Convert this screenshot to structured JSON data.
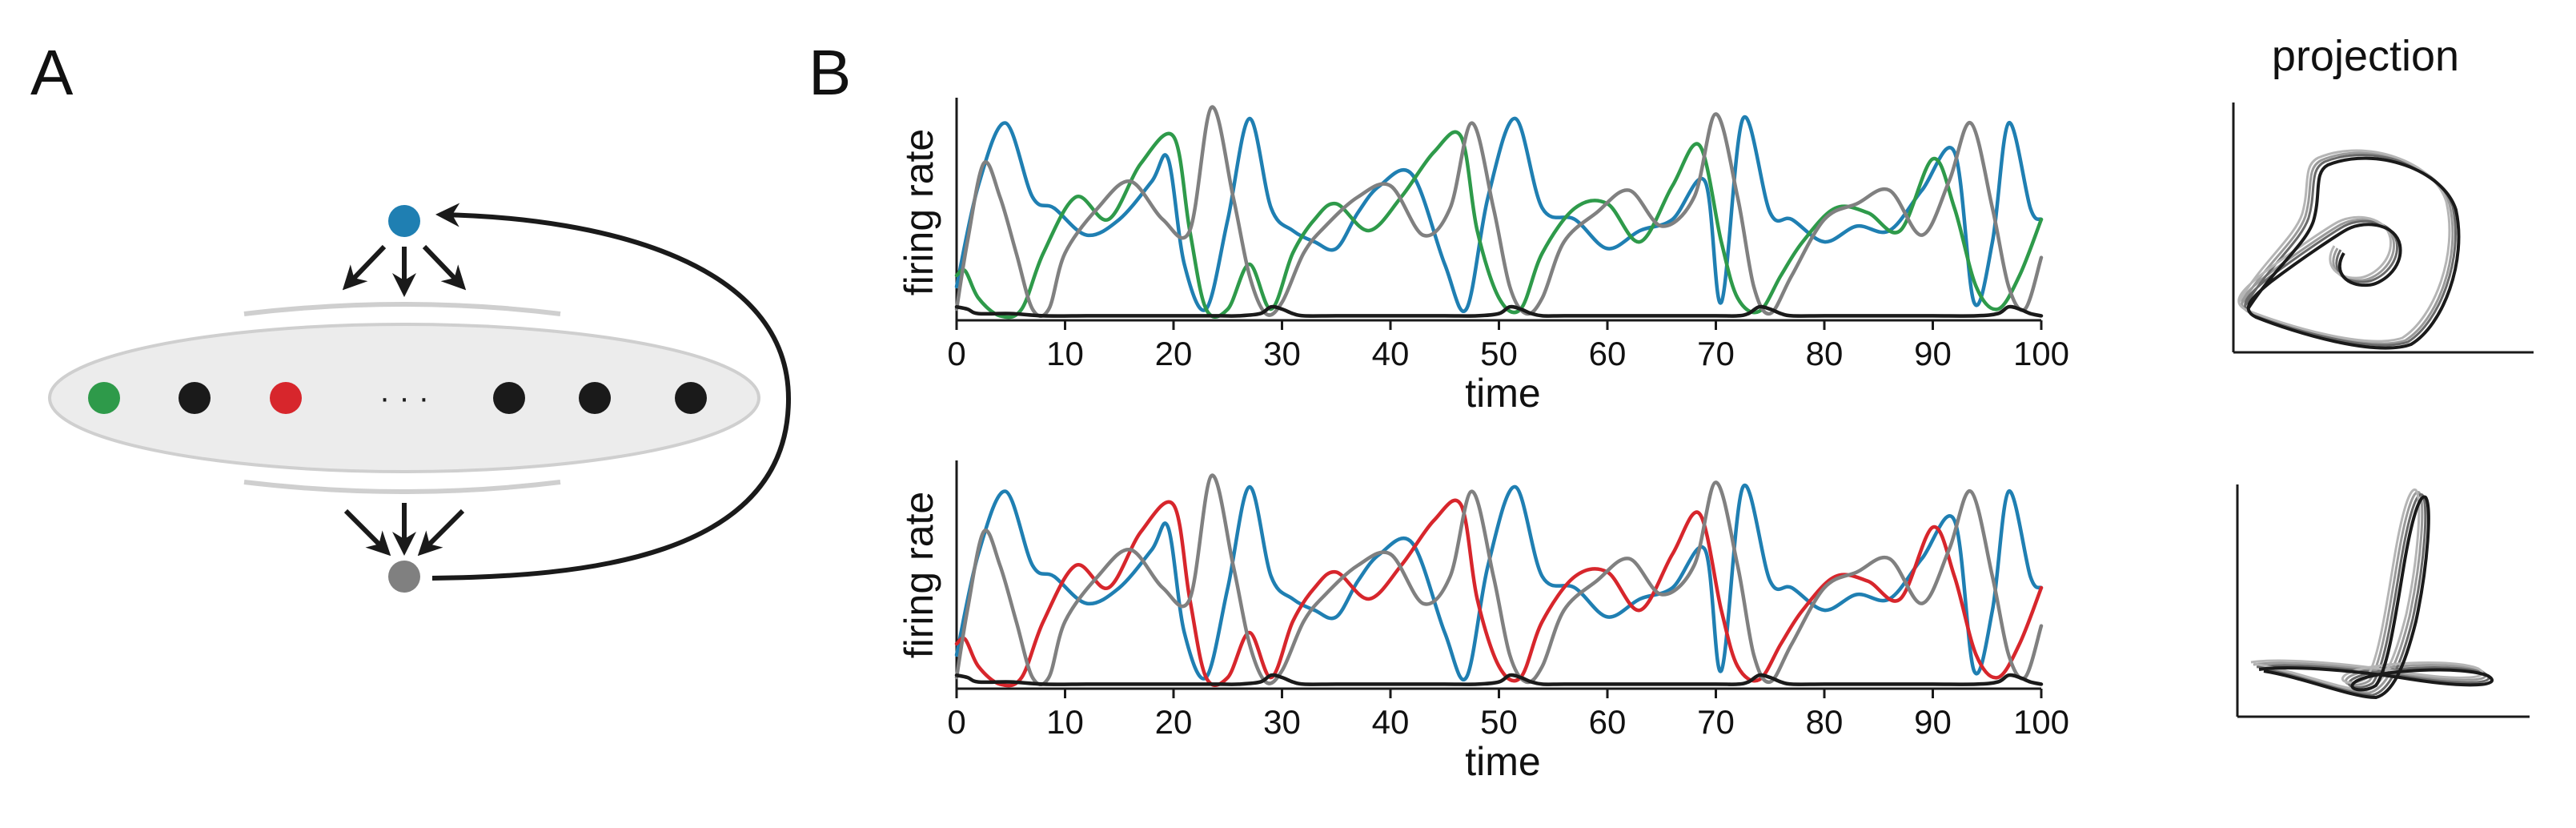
{
  "panel_a": {
    "label": "A",
    "ellipsis": "· · ·"
  },
  "panel_b": {
    "label": "B"
  },
  "projection": {
    "title": "projection"
  },
  "colors": {
    "blue": "#1f7fb2",
    "green": "#2e9a4a",
    "red": "#d7262c",
    "gray": "#808080",
    "black": "#1a1a1a",
    "ellipse_fill": "#ececec",
    "ellipse_stroke": "#cfcfcf"
  },
  "chart_data": [
    {
      "type": "line",
      "xlabel": "time",
      "ylabel": "firing rate",
      "xlim": [
        0,
        100
      ],
      "xticks": [
        "0",
        "10",
        "20",
        "30",
        "40",
        "50",
        "60",
        "70",
        "80",
        "90",
        "100"
      ],
      "series": [
        {
          "color": "#1f7fb2",
          "x": [
            0,
            2,
            4.5,
            7,
            9,
            12,
            15,
            18,
            19.5,
            21,
            23,
            25,
            27,
            29,
            31,
            33,
            35,
            37,
            39,
            42,
            45,
            47,
            49,
            51.5,
            54,
            57,
            60,
            63,
            66,
            69,
            70.5,
            72.5,
            75,
            77,
            80,
            83,
            86,
            89,
            92,
            93.8,
            95.5,
            97,
            99,
            100
          ],
          "y": [
            0.15,
            0.6,
            0.88,
            0.55,
            0.5,
            0.38,
            0.45,
            0.62,
            0.72,
            0.25,
            0.05,
            0.45,
            0.9,
            0.5,
            0.4,
            0.35,
            0.32,
            0.48,
            0.6,
            0.65,
            0.25,
            0.05,
            0.55,
            0.9,
            0.5,
            0.45,
            0.32,
            0.4,
            0.45,
            0.62,
            0.08,
            0.9,
            0.48,
            0.45,
            0.35,
            0.42,
            0.4,
            0.58,
            0.75,
            0.08,
            0.35,
            0.88,
            0.5,
            0.45
          ]
        },
        {
          "color": "#2e9a4a",
          "x": [
            0,
            0.8,
            2,
            4,
            6,
            8,
            11,
            14,
            17,
            20,
            21.5,
            23,
            25,
            27,
            29,
            31,
            33,
            35,
            38,
            41,
            44,
            46.5,
            48,
            50,
            52,
            54,
            57,
            60,
            63,
            66,
            68.5,
            70.5,
            72,
            74,
            76,
            78,
            81,
            84,
            87,
            90,
            92,
            94,
            96,
            98,
            100
          ],
          "y": [
            0.2,
            0.22,
            0.1,
            0.02,
            0.05,
            0.3,
            0.55,
            0.45,
            0.7,
            0.82,
            0.4,
            0.05,
            0.05,
            0.25,
            0.05,
            0.3,
            0.45,
            0.52,
            0.4,
            0.55,
            0.75,
            0.82,
            0.4,
            0.1,
            0.05,
            0.3,
            0.5,
            0.52,
            0.35,
            0.6,
            0.78,
            0.35,
            0.1,
            0.04,
            0.2,
            0.35,
            0.5,
            0.48,
            0.4,
            0.72,
            0.5,
            0.15,
            0.05,
            0.2,
            0.45
          ]
        },
        {
          "color": "#808080",
          "x": [
            0,
            1,
            2.5,
            4,
            5.5,
            7,
            8.5,
            10,
            13,
            16,
            19,
            21.5,
            23.5,
            25.5,
            27,
            28.5,
            30,
            32,
            34,
            37,
            40,
            43,
            45.5,
            47.5,
            49.5,
            51,
            52.5,
            54,
            56,
            59,
            62,
            65,
            68,
            70,
            72,
            73.5,
            75,
            77,
            80,
            83,
            86,
            89,
            91.5,
            93.5,
            95.5,
            97,
            98.5,
            100
          ],
          "y": [
            0.05,
            0.35,
            0.7,
            0.55,
            0.3,
            0.05,
            0.05,
            0.3,
            0.5,
            0.62,
            0.45,
            0.4,
            0.95,
            0.55,
            0.2,
            0.03,
            0.08,
            0.3,
            0.42,
            0.55,
            0.6,
            0.38,
            0.5,
            0.88,
            0.5,
            0.15,
            0.03,
            0.1,
            0.35,
            0.48,
            0.58,
            0.42,
            0.55,
            0.92,
            0.55,
            0.15,
            0.03,
            0.2,
            0.45,
            0.52,
            0.58,
            0.38,
            0.62,
            0.88,
            0.5,
            0.15,
            0.05,
            0.28
          ]
        },
        {
          "color": "#1a1a1a",
          "x": [
            0,
            1,
            2,
            5,
            8,
            12,
            16,
            20,
            24,
            26,
            28,
            29,
            30,
            31,
            32,
            35,
            40,
            45,
            48,
            50,
            51,
            52,
            53,
            54,
            56,
            60,
            65,
            70,
            72,
            73,
            74,
            75,
            76,
            77,
            80,
            85,
            90,
            94,
            96,
            97,
            98,
            99,
            100
          ],
          "y": [
            0.06,
            0.05,
            0.03,
            0.03,
            0.02,
            0.02,
            0.02,
            0.02,
            0.02,
            0.02,
            0.03,
            0.06,
            0.05,
            0.03,
            0.02,
            0.02,
            0.02,
            0.02,
            0.02,
            0.03,
            0.06,
            0.05,
            0.03,
            0.02,
            0.02,
            0.02,
            0.02,
            0.02,
            0.02,
            0.03,
            0.06,
            0.05,
            0.03,
            0.02,
            0.02,
            0.02,
            0.02,
            0.02,
            0.03,
            0.06,
            0.05,
            0.03,
            0.02
          ]
        }
      ]
    },
    {
      "type": "line",
      "xlabel": "time",
      "ylabel": "firing rate",
      "xlim": [
        0,
        100
      ],
      "xticks": [
        "0",
        "10",
        "20",
        "30",
        "40",
        "50",
        "60",
        "70",
        "80",
        "90",
        "100"
      ],
      "series": [
        {
          "color": "#1f7fb2",
          "x": [
            0,
            2,
            4.5,
            7,
            9,
            12,
            15,
            18,
            19.5,
            21,
            23,
            25,
            27,
            29,
            31,
            33,
            35,
            37,
            39,
            42,
            45,
            47,
            49,
            51.5,
            54,
            57,
            60,
            63,
            66,
            69,
            70.5,
            72.5,
            75,
            77,
            80,
            83,
            86,
            89,
            92,
            93.8,
            95.5,
            97,
            99,
            100
          ],
          "y": [
            0.15,
            0.6,
            0.88,
            0.55,
            0.5,
            0.38,
            0.45,
            0.62,
            0.72,
            0.25,
            0.05,
            0.45,
            0.9,
            0.5,
            0.4,
            0.35,
            0.32,
            0.48,
            0.6,
            0.65,
            0.25,
            0.05,
            0.55,
            0.9,
            0.5,
            0.45,
            0.32,
            0.4,
            0.45,
            0.62,
            0.08,
            0.9,
            0.48,
            0.45,
            0.35,
            0.42,
            0.4,
            0.58,
            0.75,
            0.08,
            0.35,
            0.88,
            0.5,
            0.45
          ]
        },
        {
          "color": "#d7262c",
          "x": [
            0,
            0.8,
            2,
            4,
            6,
            8,
            11,
            14,
            17,
            20,
            21.5,
            23,
            25,
            27,
            29,
            31,
            33,
            35,
            38,
            41,
            44,
            46.5,
            48,
            50,
            52,
            54,
            57,
            60,
            63,
            66,
            68.5,
            70.5,
            72,
            74,
            76,
            78,
            81,
            84,
            87,
            90,
            92,
            94,
            96,
            98,
            100
          ],
          "y": [
            0.2,
            0.22,
            0.1,
            0.02,
            0.05,
            0.3,
            0.55,
            0.45,
            0.7,
            0.82,
            0.4,
            0.05,
            0.05,
            0.25,
            0.05,
            0.3,
            0.45,
            0.52,
            0.4,
            0.55,
            0.75,
            0.82,
            0.4,
            0.1,
            0.05,
            0.3,
            0.5,
            0.52,
            0.35,
            0.6,
            0.78,
            0.35,
            0.1,
            0.04,
            0.2,
            0.35,
            0.5,
            0.48,
            0.4,
            0.72,
            0.5,
            0.15,
            0.05,
            0.2,
            0.45
          ]
        },
        {
          "color": "#808080",
          "x": [
            0,
            1,
            2.5,
            4,
            5.5,
            7,
            8.5,
            10,
            13,
            16,
            19,
            21.5,
            23.5,
            25.5,
            27,
            28.5,
            30,
            32,
            34,
            37,
            40,
            43,
            45.5,
            47.5,
            49.5,
            51,
            52.5,
            54,
            56,
            59,
            62,
            65,
            68,
            70,
            72,
            73.5,
            75,
            77,
            80,
            83,
            86,
            89,
            91.5,
            93.5,
            95.5,
            97,
            98.5,
            100
          ],
          "y": [
            0.05,
            0.35,
            0.7,
            0.55,
            0.3,
            0.05,
            0.05,
            0.3,
            0.5,
            0.62,
            0.45,
            0.4,
            0.95,
            0.55,
            0.2,
            0.03,
            0.08,
            0.3,
            0.42,
            0.55,
            0.6,
            0.38,
            0.5,
            0.88,
            0.5,
            0.15,
            0.03,
            0.1,
            0.35,
            0.48,
            0.58,
            0.42,
            0.55,
            0.92,
            0.55,
            0.15,
            0.03,
            0.2,
            0.45,
            0.52,
            0.58,
            0.38,
            0.62,
            0.88,
            0.5,
            0.15,
            0.05,
            0.28
          ]
        },
        {
          "color": "#1a1a1a",
          "x": [
            0,
            1,
            2,
            5,
            8,
            12,
            16,
            20,
            24,
            26,
            28,
            29,
            30,
            31,
            32,
            35,
            40,
            45,
            48,
            50,
            51,
            52,
            53,
            54,
            56,
            60,
            65,
            70,
            72,
            73,
            74,
            75,
            76,
            77,
            80,
            85,
            90,
            94,
            96,
            97,
            98,
            99,
            100
          ],
          "y": [
            0.06,
            0.05,
            0.03,
            0.03,
            0.02,
            0.02,
            0.02,
            0.02,
            0.02,
            0.02,
            0.03,
            0.06,
            0.05,
            0.03,
            0.02,
            0.02,
            0.02,
            0.02,
            0.02,
            0.03,
            0.06,
            0.05,
            0.03,
            0.02,
            0.02,
            0.02,
            0.02,
            0.02,
            0.02,
            0.03,
            0.06,
            0.05,
            0.03,
            0.02,
            0.02,
            0.02,
            0.02,
            0.02,
            0.03,
            0.06,
            0.05,
            0.03,
            0.02
          ]
        }
      ]
    }
  ]
}
